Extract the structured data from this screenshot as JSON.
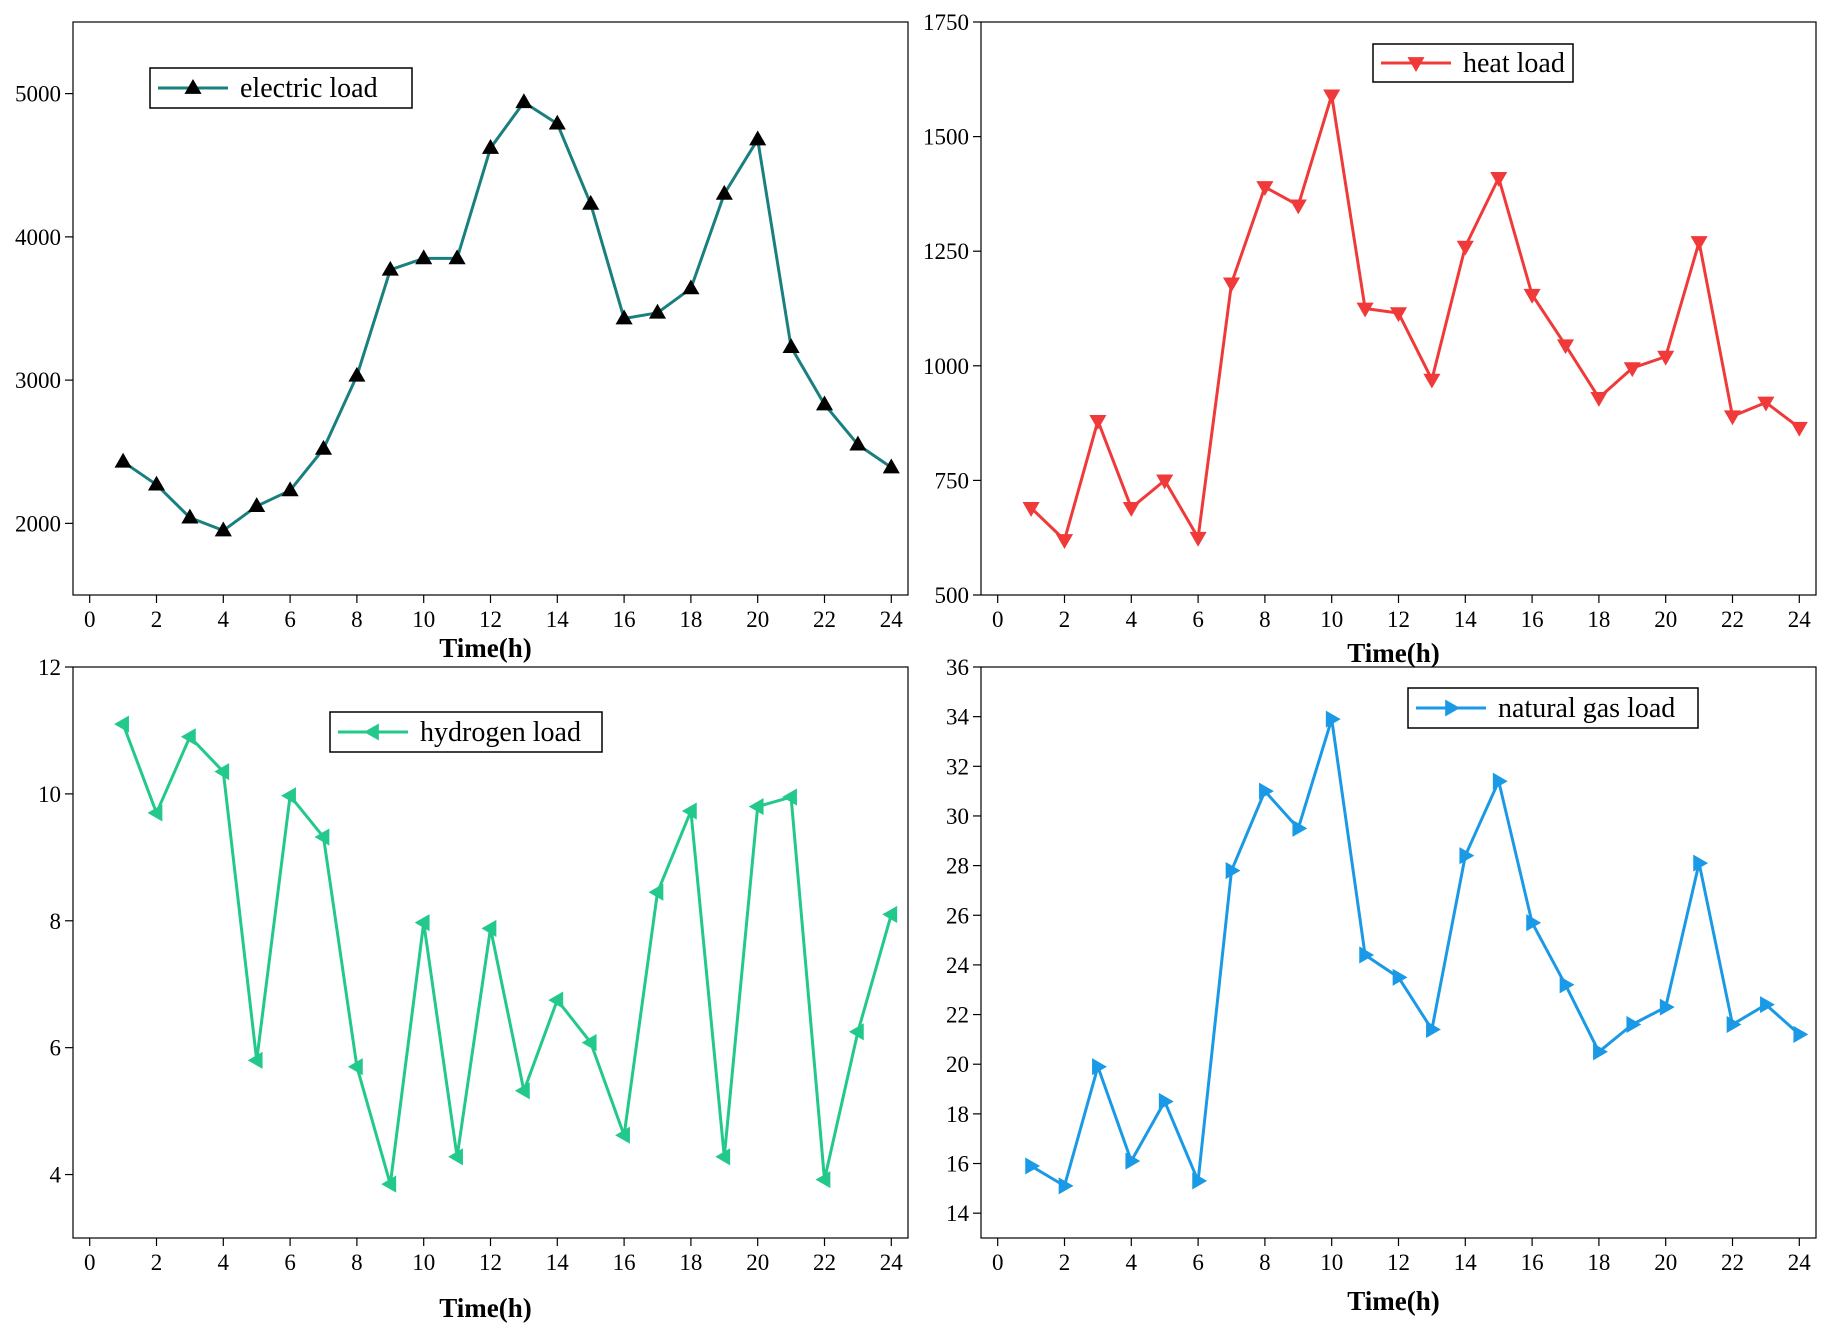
{
  "chart_data": [
    {
      "type": "line",
      "marker": "triangle-up",
      "color": "#1a7f7f",
      "marker_color": "#000000",
      "legend_text": "electric load",
      "legend_position": "top-left",
      "xlabel": "Time(h)",
      "ylabel": "",
      "xlim": [
        -0.5,
        24.5
      ],
      "ylim": [
        1500,
        5500
      ],
      "xticks": [
        0,
        2,
        4,
        6,
        8,
        10,
        12,
        14,
        16,
        18,
        20,
        22,
        24
      ],
      "yticks": [
        2000,
        3000,
        4000,
        5000
      ],
      "x": [
        1,
        2,
        3,
        4,
        5,
        6,
        7,
        8,
        9,
        10,
        11,
        12,
        13,
        14,
        15,
        16,
        17,
        18,
        19,
        20,
        21,
        22,
        23,
        24
      ],
      "y": [
        2430,
        2270,
        2040,
        1950,
        2120,
        2230,
        2520,
        3030,
        3770,
        3850,
        3850,
        4620,
        4940,
        4790,
        4230,
        3430,
        3470,
        3640,
        4300,
        4680,
        3230,
        2830,
        2550,
        2390
      ]
    },
    {
      "type": "line",
      "marker": "triangle-down",
      "color": "#f03a3a",
      "marker_color": "#f03a3a",
      "legend_text": "heat load",
      "legend_position": "top-right",
      "xlabel": "Time(h)",
      "ylabel": "",
      "xlim": [
        -0.5,
        24.5
      ],
      "ylim": [
        500,
        1750
      ],
      "xticks": [
        0,
        2,
        4,
        6,
        8,
        10,
        12,
        14,
        16,
        18,
        20,
        22,
        24
      ],
      "yticks": [
        500,
        750,
        1000,
        1250,
        1500,
        1750
      ],
      "x": [
        1,
        2,
        3,
        4,
        5,
        6,
        7,
        8,
        9,
        10,
        11,
        12,
        13,
        14,
        15,
        16,
        17,
        18,
        19,
        20,
        21,
        22,
        23,
        24
      ],
      "y": [
        690,
        620,
        880,
        690,
        750,
        625,
        1180,
        1390,
        1350,
        1590,
        1125,
        1115,
        970,
        1260,
        1410,
        1155,
        1045,
        930,
        995,
        1020,
        1270,
        890,
        920,
        865
      ]
    },
    {
      "type": "line",
      "marker": "triangle-left",
      "color": "#22c98a",
      "marker_color": "#22c98a",
      "legend_text": "hydrogen load",
      "legend_position": "top-center",
      "xlabel": "Time(h)",
      "ylabel": "",
      "xlim": [
        -0.5,
        24.5
      ],
      "ylim": [
        3,
        12
      ],
      "xticks": [
        0,
        2,
        4,
        6,
        8,
        10,
        12,
        14,
        16,
        18,
        20,
        22,
        24
      ],
      "yticks": [
        4,
        6,
        8,
        10,
        12
      ],
      "x": [
        1,
        2,
        3,
        4,
        5,
        6,
        7,
        8,
        9,
        10,
        11,
        12,
        13,
        14,
        15,
        16,
        17,
        18,
        19,
        20,
        21,
        22,
        23,
        24
      ],
      "y": [
        11.1,
        9.7,
        10.9,
        10.35,
        5.8,
        9.97,
        9.32,
        5.7,
        3.85,
        7.97,
        4.28,
        7.88,
        5.32,
        6.75,
        6.08,
        4.62,
        8.45,
        9.73,
        4.28,
        9.8,
        9.95,
        3.92,
        6.25,
        8.1
      ]
    },
    {
      "type": "line",
      "marker": "triangle-right",
      "color": "#1a9ae6",
      "marker_color": "#1a9ae6",
      "legend_text": "natural gas load",
      "legend_position": "top-right",
      "xlabel": "Time(h)",
      "ylabel": "",
      "xlim": [
        -0.5,
        24.5
      ],
      "ylim": [
        13,
        36
      ],
      "xticks": [
        0,
        2,
        4,
        6,
        8,
        10,
        12,
        14,
        16,
        18,
        20,
        22,
        24
      ],
      "yticks": [
        14,
        16,
        18,
        20,
        22,
        24,
        26,
        28,
        30,
        32,
        34,
        36
      ],
      "x": [
        1,
        2,
        3,
        4,
        5,
        6,
        7,
        8,
        9,
        10,
        11,
        12,
        13,
        14,
        15,
        16,
        17,
        18,
        19,
        20,
        21,
        22,
        23,
        24
      ],
      "y": [
        15.9,
        15.1,
        19.9,
        16.1,
        18.5,
        15.3,
        27.8,
        31.0,
        29.5,
        33.9,
        24.4,
        23.5,
        21.4,
        28.4,
        31.4,
        25.7,
        23.2,
        20.5,
        21.6,
        22.3,
        28.1,
        21.6,
        22.4,
        21.2
      ]
    }
  ]
}
